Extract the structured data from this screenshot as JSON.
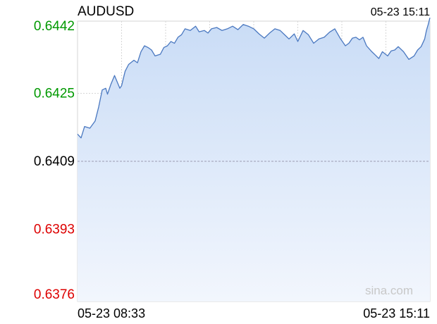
{
  "chart_data": {
    "type": "area",
    "title": "AUDUSD",
    "timestamp": "05-23 15:11",
    "watermark": "sina.com",
    "x_start_label": "05-23 08:33",
    "x_end_label": "05-23 15:11",
    "y_tick_labels": [
      "0.6442",
      "0.6425",
      "0.6409",
      "0.6393",
      "0.6376"
    ],
    "y_ticks": [
      0.6442,
      0.6425,
      0.6409,
      0.6393,
      0.6376
    ],
    "ylim": [
      0.6376,
      0.6442
    ],
    "reference_price": 0.6409,
    "grid": true,
    "colors": {
      "up": "#009900",
      "down": "#dd0000",
      "neutral": "#000000",
      "line": "#4a78c0",
      "fill_top": "#c9dcf6",
      "fill_bottom": "#f2f6fd",
      "grid": "#d6d6d6",
      "watermark": "#c8c8c8"
    },
    "series": [
      {
        "x_fraction": [
          0.0,
          0.01,
          0.02,
          0.035,
          0.05,
          0.06,
          0.07,
          0.08,
          0.085,
          0.095,
          0.105,
          0.12,
          0.125,
          0.135,
          0.145,
          0.16,
          0.17,
          0.18,
          0.19,
          0.2,
          0.21,
          0.22,
          0.235,
          0.245,
          0.255,
          0.265,
          0.275,
          0.285,
          0.295,
          0.305,
          0.32,
          0.335,
          0.345,
          0.36,
          0.37,
          0.38,
          0.395,
          0.41,
          0.425,
          0.44,
          0.455,
          0.47,
          0.485,
          0.5,
          0.515,
          0.53,
          0.545,
          0.56,
          0.575,
          0.59,
          0.6,
          0.615,
          0.625,
          0.64,
          0.655,
          0.67,
          0.685,
          0.7,
          0.715,
          0.73,
          0.745,
          0.76,
          0.77,
          0.78,
          0.79,
          0.8,
          0.81,
          0.82,
          0.835,
          0.845,
          0.855,
          0.865,
          0.88,
          0.89,
          0.9,
          0.91,
          0.925,
          0.94,
          0.955,
          0.965,
          0.975,
          0.985,
          0.99,
          0.995,
          1.0
        ],
        "values": [
          0.64154,
          0.64145,
          0.64172,
          0.64168,
          0.64185,
          0.64218,
          0.64258,
          0.64262,
          0.64248,
          0.64272,
          0.64292,
          0.64262,
          0.64268,
          0.64302,
          0.64318,
          0.64328,
          0.64322,
          0.64348,
          0.64362,
          0.64358,
          0.64352,
          0.64338,
          0.64342,
          0.64358,
          0.64362,
          0.64372,
          0.64368,
          0.64382,
          0.64388,
          0.64402,
          0.64398,
          0.64408,
          0.64395,
          0.64398,
          0.64392,
          0.64402,
          0.64405,
          0.64398,
          0.64402,
          0.64408,
          0.644,
          0.64412,
          0.64408,
          0.64402,
          0.6439,
          0.6438,
          0.64392,
          0.64402,
          0.64398,
          0.64386,
          0.64378,
          0.6439,
          0.64372,
          0.64398,
          0.64388,
          0.64368,
          0.64378,
          0.64382,
          0.64394,
          0.64402,
          0.6438,
          0.64362,
          0.64368,
          0.6438,
          0.64382,
          0.64376,
          0.64382,
          0.64362,
          0.64348,
          0.6434,
          0.64332,
          0.64348,
          0.64338,
          0.6435,
          0.64352,
          0.6436,
          0.64348,
          0.6433,
          0.64338,
          0.64352,
          0.6436,
          0.64378,
          0.64398,
          0.64412,
          0.64428
        ]
      }
    ]
  }
}
